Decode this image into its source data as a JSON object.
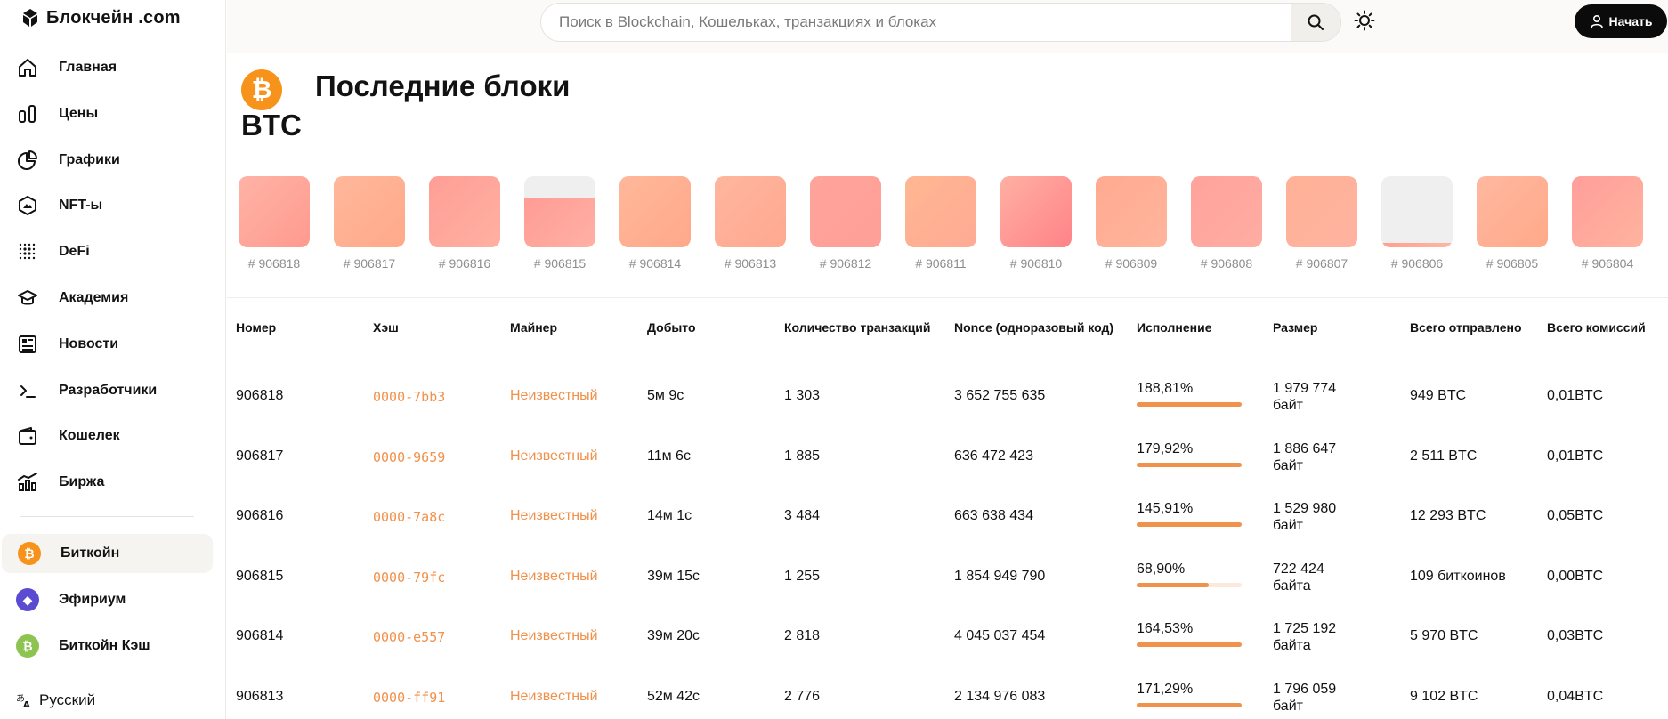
{
  "brand": {
    "name": "Блокчейн .com"
  },
  "nav": [
    {
      "label": "Главная",
      "icon": "home-icon"
    },
    {
      "label": "Цены",
      "icon": "prices-icon"
    },
    {
      "label": "Графики",
      "icon": "pie-chart-icon"
    },
    {
      "label": "NFT-ы",
      "icon": "nft-icon"
    },
    {
      "label": "DeFi",
      "icon": "defi-icon"
    },
    {
      "label": "Академия",
      "icon": "academy-icon"
    },
    {
      "label": "Новости",
      "icon": "news-icon"
    },
    {
      "label": "Разработчики",
      "icon": "terminal-icon"
    },
    {
      "label": "Кошелек",
      "icon": "wallet-icon"
    },
    {
      "label": "Биржа",
      "icon": "exchange-icon"
    }
  ],
  "coins": [
    {
      "label": "Биткойн",
      "icon": "bitcoin-icon",
      "color": "#f7931a",
      "active": true
    },
    {
      "label": "Эфириум",
      "icon": "ethereum-icon",
      "color": "#5b4bd1",
      "active": false
    },
    {
      "label": "Биткойн Кэш",
      "icon": "bitcoin-cash-icon",
      "color": "#8dc351",
      "active": false
    }
  ],
  "language": {
    "label": "Русский"
  },
  "search": {
    "placeholder": "Поиск в Blockchain, Кошельках, транзакциях и блоках"
  },
  "header": {
    "start_label": "Начать"
  },
  "page": {
    "asset": "BTC",
    "title": "Последние блоки"
  },
  "strip": {
    "blocks": [
      {
        "number": "# 906818",
        "fill": 1.0,
        "gradient": [
          "#ffb3a6",
          "#ff9a8f"
        ]
      },
      {
        "number": "# 906817",
        "fill": 1.0,
        "gradient": [
          "#ffb89a",
          "#ffa98a"
        ]
      },
      {
        "number": "# 906816",
        "fill": 1.0,
        "gradient": [
          "#ff9e96",
          "#ffb0a2"
        ]
      },
      {
        "number": "# 906815",
        "fill": 0.7,
        "gradient": [
          "#ff9c94",
          "#ffb0a5"
        ]
      },
      {
        "number": "# 906814",
        "fill": 1.0,
        "gradient": [
          "#ffb89a",
          "#ffa88a"
        ]
      },
      {
        "number": "# 906813",
        "fill": 1.0,
        "gradient": [
          "#ffb69e",
          "#ffa890"
        ]
      },
      {
        "number": "# 906812",
        "fill": 1.0,
        "gradient": [
          "#ffa49a",
          "#ff9f98"
        ]
      },
      {
        "number": "# 906811",
        "fill": 1.0,
        "gradient": [
          "#ffb792",
          "#ffaa94"
        ]
      },
      {
        "number": "# 906810",
        "fill": 1.0,
        "gradient": [
          "#ffb0a3",
          "#ff8288"
        ]
      },
      {
        "number": "# 906809",
        "fill": 1.0,
        "gradient": [
          "#ffaa90",
          "#ffb59d"
        ]
      },
      {
        "number": "# 906808",
        "fill": 1.0,
        "gradient": [
          "#ffa39b",
          "#ffaca3"
        ]
      },
      {
        "number": "# 906807",
        "fill": 1.0,
        "gradient": [
          "#ffb296",
          "#ffb2a0"
        ]
      },
      {
        "number": "# 906806",
        "fill": 0.06,
        "gradient": [
          "#ff9f8d",
          "#ffb7a6"
        ]
      },
      {
        "number": "# 906805",
        "fill": 1.0,
        "gradient": [
          "#ffb8a0",
          "#ffa989"
        ]
      },
      {
        "number": "# 906804",
        "fill": 1.0,
        "gradient": [
          "#ff9e9b",
          "#ffb39e"
        ]
      }
    ]
  },
  "table": {
    "headers": [
      "Номер",
      "Хэш",
      "Майнер",
      "Добыто",
      "Количество транзакций",
      "Nonce (одноразовый код)",
      "Исполнение",
      "Размер",
      "Всего отправлено",
      "Всего комиссий"
    ],
    "rows": [
      {
        "number": "906818",
        "hash": "0000-7bb3",
        "miner": "Неизвестный",
        "mined": "5м 9с",
        "tx_count": "1 303",
        "nonce": "3 652 755 635",
        "performance": "188,81%",
        "performance_level": 1.0,
        "size": "1 979 774 байт",
        "sent": "949 BTC",
        "fees": "0,01BTC"
      },
      {
        "number": "906817",
        "hash": "0000-9659",
        "miner": "Неизвестный",
        "mined": "11м 6с",
        "tx_count": "1 885",
        "nonce": "636 472 423",
        "performance": "179,92%",
        "performance_level": 1.0,
        "size": "1 886 647 байт",
        "sent": "2 511 BTC",
        "fees": "0,01BTC"
      },
      {
        "number": "906816",
        "hash": "0000-7a8c",
        "miner": "Неизвестный",
        "mined": "14м 1с",
        "tx_count": "3 484",
        "nonce": "663 638 434",
        "performance": "145,91%",
        "performance_level": 1.0,
        "size": "1 529 980 байт",
        "sent": "12 293 BTC",
        "fees": "0,05BTC"
      },
      {
        "number": "906815",
        "hash": "0000-79fc",
        "miner": "Неизвестный",
        "mined": "39м 15с",
        "tx_count": "1 255",
        "nonce": "1 854 949 790",
        "performance": "68,90%",
        "performance_level": 0.689,
        "size": "722 424 байта",
        "sent": "109 биткоинов",
        "fees": "0,00BTC"
      },
      {
        "number": "906814",
        "hash": "0000-e557",
        "miner": "Неизвестный",
        "mined": "39м 20с",
        "tx_count": "2 818",
        "nonce": "4 045 037 454",
        "performance": "164,53%",
        "performance_level": 1.0,
        "size": "1 725 192 байта",
        "sent": "5 970 BTC",
        "fees": "0,03BTC"
      },
      {
        "number": "906813",
        "hash": "0000-ff91",
        "miner": "Неизвестный",
        "mined": "52м 42с",
        "tx_count": "2 776",
        "nonce": "2 134 976 083",
        "performance": "171,29%",
        "performance_level": 1.0,
        "size": "1 796 059 байт",
        "sent": "9 102 BTC",
        "fees": "0,04BTC"
      }
    ]
  },
  "colors": {
    "accent": "#f0914c",
    "bitcoin": "#f7931a",
    "text": "#121212"
  }
}
